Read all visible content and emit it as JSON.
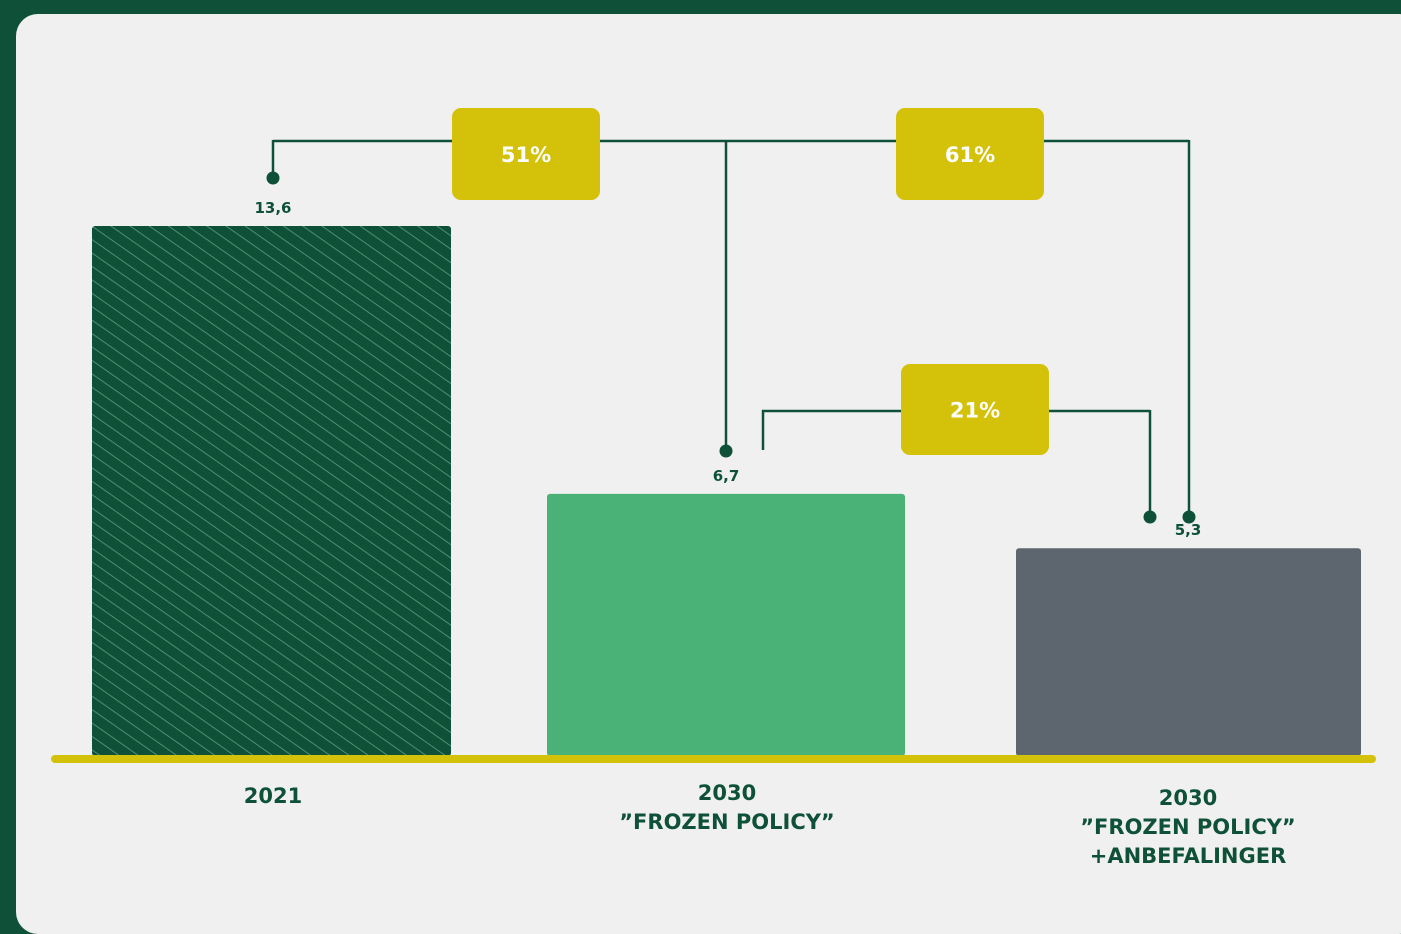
{
  "colors": {
    "background": "#0e5138",
    "card": "#f0f0f0",
    "bar_2021": "#0e5138",
    "bar_2021_hatch": "#4e8f72",
    "bar_frozen": "#4ab276",
    "bar_recommend": "#5d656f",
    "baseline": "#d4c10a",
    "badge": "#d4c10a",
    "connector": "#0e5138"
  },
  "chart_data": {
    "type": "bar",
    "categories": [
      [
        "2021"
      ],
      [
        "2030",
        "”FROZEN POLICY”"
      ],
      [
        "2030",
        "”FROZEN POLICY”",
        "+ANBEFALINGER"
      ]
    ],
    "values": [
      13.6,
      6.7,
      5.3
    ],
    "value_labels": [
      "13,6",
      "6,7",
      "5,3"
    ],
    "ylim": [
      0,
      13.6
    ],
    "reductions": [
      {
        "label": "51%",
        "from": 0,
        "to": 1
      },
      {
        "label": "61%",
        "from": 0,
        "to": 2
      },
      {
        "label": "21%",
        "from": 1,
        "to": 2
      }
    ],
    "grid": false,
    "legend": "none"
  }
}
